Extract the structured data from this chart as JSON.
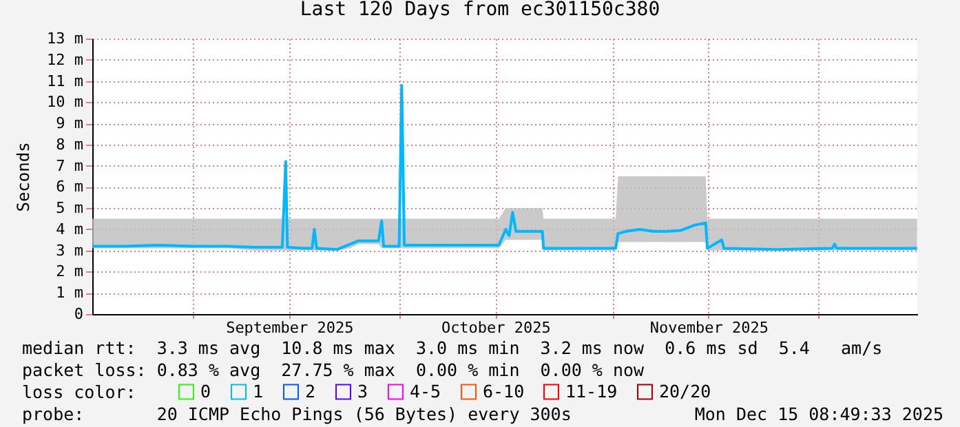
{
  "chart_data": {
    "type": "line",
    "title": "Last 120 Days from ec301150c380",
    "ylabel": "Seconds",
    "legend_title": "loss color:",
    "legend": "bottom",
    "grid": true,
    "xlim": [
      "2025-08-17T08:49",
      "2025-12-15T08:49"
    ],
    "ylim": [
      0,
      13
    ],
    "xticks": [
      {
        "value": "2025-09-01",
        "label": null
      },
      {
        "value": "2025-09-15",
        "label": "September 2025"
      },
      {
        "value": "2025-10-01",
        "label": null
      },
      {
        "value": "2025-10-15",
        "label": "October 2025"
      },
      {
        "value": "2025-11-01",
        "label": null
      },
      {
        "value": "2025-11-15",
        "label": "November 2025"
      },
      {
        "value": "2025-12-01",
        "label": null
      }
    ],
    "yticks": [
      0,
      {
        "value": 1,
        "label": "1 m"
      },
      {
        "value": 2,
        "label": "2 m"
      },
      {
        "value": 3,
        "label": "3 m"
      },
      {
        "value": 4,
        "label": "4 m"
      },
      {
        "value": 5,
        "label": "5 m"
      },
      {
        "value": 6,
        "label": "6 m"
      },
      {
        "value": 7,
        "label": "7 m"
      },
      {
        "value": 8,
        "label": "8 m"
      },
      {
        "value": 9,
        "label": "9 m"
      },
      {
        "value": 10,
        "label": "10 m"
      },
      {
        "value": 11,
        "label": "11 m"
      },
      {
        "value": 12,
        "label": "12 m"
      },
      {
        "value": 13,
        "label": "13 m"
      }
    ],
    "x": [
      "2025-08-17T09:00",
      "2025-08-22",
      "2025-08-27",
      "2025-09-01",
      "2025-09-06",
      "2025-09-10",
      "2025-09-14",
      "2025-09-14T12:00",
      "2025-09-14T18:00",
      "2025-09-17",
      "2025-09-18T08:00",
      "2025-09-18T16:00",
      "2025-09-19",
      "2025-09-22",
      "2025-09-23T22:00",
      "2025-09-25",
      "2025-09-28",
      "2025-09-28T11:00",
      "2025-09-28T18:00",
      "2025-10-01",
      "2025-10-01T09:00",
      "2025-10-01T18:00",
      "2025-10-08",
      "2025-10-15T12:00",
      "2025-10-16T12:00",
      "2025-10-17",
      "2025-10-17T12:00",
      "2025-10-18",
      "2025-10-21T20:00",
      "2025-10-22",
      "2025-10-28",
      "2025-11-01T12:00",
      "2025-11-01T20:00",
      "2025-11-03",
      "2025-11-05",
      "2025-11-07",
      "2025-11-09",
      "2025-11-11",
      "2025-11-13",
      "2025-11-14T14:00",
      "2025-11-14T20:00",
      "2025-11-16T22:00",
      "2025-11-17T06:00",
      "2025-11-25",
      "2025-12-03",
      "2025-12-03T08:00",
      "2025-12-03T16:00",
      "2025-12-10",
      "2025-12-15T08:00"
    ],
    "series": [
      {
        "name": "0",
        "color": "#26ff00",
        "values": [
          null,
          null,
          null,
          null,
          null,
          null,
          null,
          null,
          null,
          null,
          null,
          null,
          null,
          null,
          null,
          null,
          null,
          null,
          null,
          null,
          null,
          null,
          null,
          null,
          null,
          null,
          null,
          null,
          null,
          null,
          null,
          null,
          null,
          null,
          null,
          null,
          null,
          null,
          null,
          null,
          null,
          null,
          null,
          null,
          null,
          null,
          null,
          null,
          null
        ]
      },
      {
        "name": "1",
        "color": "#00b8ff",
        "values": [
          3.2,
          3.2,
          3.25,
          3.2,
          3.2,
          3.15,
          3.15,
          7.2,
          3.15,
          3.1,
          3.1,
          4.0,
          3.1,
          3.05,
          3.3,
          3.45,
          3.45,
          4.4,
          3.2,
          3.2,
          10.8,
          3.25,
          3.25,
          3.25,
          4.0,
          3.7,
          4.8,
          3.9,
          3.9,
          3.1,
          3.1,
          3.1,
          3.8,
          3.9,
          4.0,
          3.9,
          3.9,
          3.95,
          4.2,
          4.3,
          3.1,
          3.5,
          3.1,
          3.05,
          3.1,
          3.3,
          3.1,
          3.1,
          3.1
        ],
        "lower": [
          3.1,
          3.1,
          3.1,
          3.1,
          3.1,
          3.0,
          3.0,
          3.0,
          3.0,
          3.0,
          3.0,
          3.0,
          3.0,
          3.0,
          3.1,
          3.3,
          3.3,
          3.1,
          3.1,
          3.1,
          3.1,
          3.1,
          3.1,
          3.1,
          3.5,
          3.5,
          3.5,
          3.5,
          3.5,
          3.0,
          3.0,
          3.0,
          3.4,
          3.4,
          3.4,
          3.4,
          3.4,
          3.4,
          3.4,
          3.4,
          3.0,
          3.0,
          3.0,
          3.0,
          3.0,
          3.0,
          3.0,
          3.0,
          3.0
        ],
        "upper": [
          4.5,
          4.5,
          4.5,
          4.5,
          4.5,
          4.5,
          4.5,
          4.5,
          4.5,
          4.5,
          4.5,
          4.5,
          4.5,
          4.5,
          4.5,
          4.5,
          4.5,
          4.5,
          4.5,
          4.5,
          4.5,
          4.5,
          4.5,
          4.5,
          5.0,
          5.0,
          5.0,
          5.0,
          5.0,
          4.5,
          4.5,
          4.5,
          6.5,
          6.5,
          6.5,
          6.5,
          6.5,
          6.5,
          6.5,
          6.5,
          4.5,
          4.5,
          4.5,
          4.5,
          4.5,
          4.5,
          4.5,
          4.5,
          4.5
        ]
      },
      {
        "name": "2",
        "color": "#0059ff",
        "values": [
          null,
          null,
          null,
          null,
          null,
          null,
          null,
          null,
          null,
          null,
          null,
          null,
          null,
          null,
          null,
          null,
          null,
          null,
          null,
          null,
          null,
          null,
          null,
          null,
          null,
          null,
          null,
          null,
          null,
          null,
          null,
          null,
          null,
          null,
          null,
          null,
          null,
          null,
          null,
          null,
          null,
          null,
          null,
          null,
          null,
          null,
          null,
          null,
          null
        ]
      },
      {
        "name": "3",
        "color": "#5e00ff",
        "values": [
          null,
          null,
          null,
          null,
          null,
          null,
          null,
          null,
          null,
          null,
          null,
          null,
          null,
          null,
          null,
          null,
          null,
          null,
          null,
          null,
          null,
          null,
          null,
          null,
          null,
          null,
          null,
          null,
          null,
          null,
          null,
          null,
          null,
          null,
          null,
          null,
          null,
          null,
          null,
          null,
          null,
          null,
          null,
          null,
          null,
          null,
          null,
          null,
          null
        ]
      },
      {
        "name": "4-5",
        "color": "#ff00ff",
        "values": [
          null,
          null,
          null,
          null,
          null,
          null,
          null,
          null,
          null,
          null,
          null,
          null,
          null,
          null,
          null,
          null,
          null,
          null,
          null,
          null,
          null,
          null,
          null,
          null,
          null,
          null,
          null,
          null,
          null,
          null,
          null,
          null,
          null,
          null,
          null,
          null,
          null,
          null,
          null,
          null,
          null,
          null,
          null,
          null,
          null,
          null,
          null,
          null,
          null
        ]
      },
      {
        "name": "6-10",
        "color": "#ff5500",
        "values": [
          null,
          null,
          null,
          null,
          null,
          null,
          null,
          null,
          null,
          null,
          null,
          null,
          null,
          null,
          null,
          null,
          null,
          null,
          null,
          null,
          null,
          null,
          null,
          null,
          null,
          null,
          null,
          null,
          null,
          null,
          null,
          null,
          null,
          null,
          null,
          null,
          null,
          null,
          null,
          null,
          null,
          null,
          null,
          null,
          null,
          null,
          null,
          null,
          null
        ]
      },
      {
        "name": "11-19",
        "color": "#ff0000",
        "values": [
          null,
          null,
          null,
          null,
          null,
          null,
          null,
          null,
          null,
          null,
          null,
          null,
          null,
          null,
          null,
          null,
          null,
          null,
          null,
          null,
          null,
          null,
          null,
          null,
          null,
          null,
          null,
          null,
          null,
          null,
          null,
          null,
          null,
          null,
          null,
          null,
          null,
          null,
          null,
          null,
          null,
          null,
          null,
          null,
          null,
          null,
          null,
          null,
          null
        ]
      },
      {
        "name": "20/20",
        "color": "#a10000",
        "values": [
          null,
          null,
          null,
          null,
          null,
          null,
          null,
          null,
          null,
          null,
          null,
          null,
          null,
          null,
          null,
          null,
          null,
          null,
          null,
          null,
          null,
          null,
          null,
          null,
          null,
          null,
          null,
          null,
          null,
          null,
          null,
          null,
          null,
          null,
          null,
          null,
          null,
          null,
          null,
          null,
          null,
          null,
          null,
          null,
          null,
          null,
          null,
          null,
          null
        ]
      }
    ],
    "annotations": [
      "median rtt:  3.3 ms avg  10.8 ms max  3.0 ms min  3.2 ms now  0.6 ms sd  5.4   am/s",
      "packet loss: 0.83 % avg  27.75 % max  0.00 % min  0.00 % now",
      "probe:       20 ICMP Echo Pings (56 Bytes) every 300s",
      "Mon Dec 15 08:49:33 2025"
    ]
  }
}
